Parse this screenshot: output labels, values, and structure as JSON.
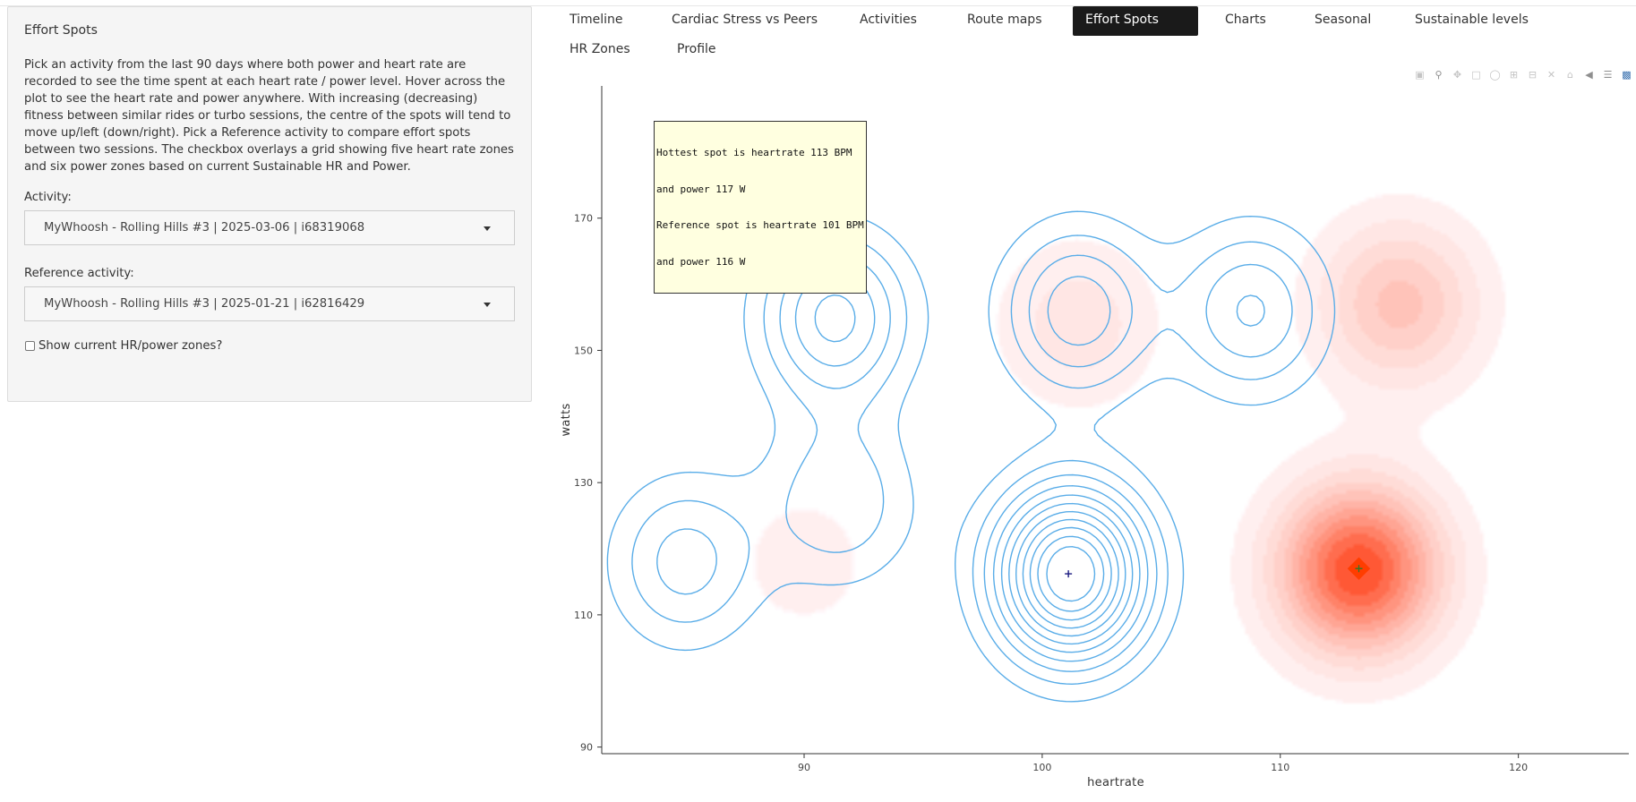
{
  "sidebar": {
    "title": "Effort Spots",
    "description": "Pick an activity from the last 90 days where both power and heart rate are recorded to see the time spent at each heart rate / power level. Hover across the plot to see the heart rate and power anywhere. With increasing (decreasing) fitness between similar rides or turbo sessions, the centre of the spots will tend to move up/left (down/right). Pick a Reference activity to compare effort spots between two sessions. The checkbox overlays a grid showing five heart rate zones and six power zones based on current Sustainable HR and Power.",
    "activity_label": "Activity:",
    "activity_value": "MyWhoosh - Rolling Hills #3 | 2025-03-06 | i68319068",
    "reference_label": "Reference activity:",
    "reference_value": "MyWhoosh - Rolling Hills #3 | 2025-01-21 | i62816429",
    "checkbox_label": "Show current HR/power zones?"
  },
  "tabs": [
    {
      "label": "Timeline",
      "active": false
    },
    {
      "label": "Cardiac Stress vs Peers",
      "active": false
    },
    {
      "label": "Activities",
      "active": false
    },
    {
      "label": "Route maps",
      "active": false
    },
    {
      "label": "Effort Spots",
      "active": true
    },
    {
      "label": "Charts",
      "active": false
    },
    {
      "label": "Seasonal",
      "active": false
    },
    {
      "label": "Sustainable levels",
      "active": false
    },
    {
      "label": "HR Zones",
      "active": false
    },
    {
      "label": "Profile",
      "active": false
    }
  ],
  "modebar": [
    "camera-icon",
    "zoom-icon",
    "pan-icon",
    "box-select-icon",
    "lasso-icon",
    "zoom-in-icon",
    "zoom-out-icon",
    "autoscale-icon",
    "reset-axes-icon",
    "hover-closest-icon",
    "hover-compare-icon",
    "plotly-logo-icon"
  ],
  "chart_data": {
    "type": "contour",
    "xlabel": "heartrate",
    "ylabel": "watts",
    "xlim": [
      81.5,
      124
    ],
    "ylim": [
      89,
      190
    ],
    "xticks": [
      90,
      100,
      110,
      120
    ],
    "yticks": [
      90,
      110,
      130,
      150,
      170
    ],
    "grid": false,
    "annotation": [
      "Hottest spot is heartrate 113 BPM",
      "and power 117 W",
      "Reference spot is heartrate 101 BPM",
      "and power 116 W"
    ],
    "series": [
      {
        "kind": "filled-density",
        "color": "#ff5a20",
        "peaks": [
          {
            "x": 113.3,
            "y": 116.8,
            "weight": 1.0
          },
          {
            "x": 115.0,
            "y": 157.0,
            "weight": 0.45
          },
          {
            "x": 101.5,
            "y": 154.0,
            "weight": 0.22
          },
          {
            "x": 90.0,
            "y": 118.0,
            "weight": 0.12
          }
        ],
        "hot_spot": {
          "x": 113,
          "y": 117
        }
      },
      {
        "kind": "line-contours",
        "color": "#5aade8",
        "peaks": [
          {
            "x": 101.2,
            "y": 116.2,
            "weight": 1.0
          },
          {
            "x": 91.3,
            "y": 155.0,
            "weight": 0.45
          },
          {
            "x": 101.5,
            "y": 156.0,
            "weight": 0.4
          },
          {
            "x": 108.8,
            "y": 156.0,
            "weight": 0.35
          },
          {
            "x": 85.0,
            "y": 118.0,
            "weight": 0.3
          },
          {
            "x": 91.5,
            "y": 127.0,
            "weight": 0.25
          }
        ],
        "reference_spot": {
          "x": 101,
          "y": 116
        }
      }
    ]
  }
}
